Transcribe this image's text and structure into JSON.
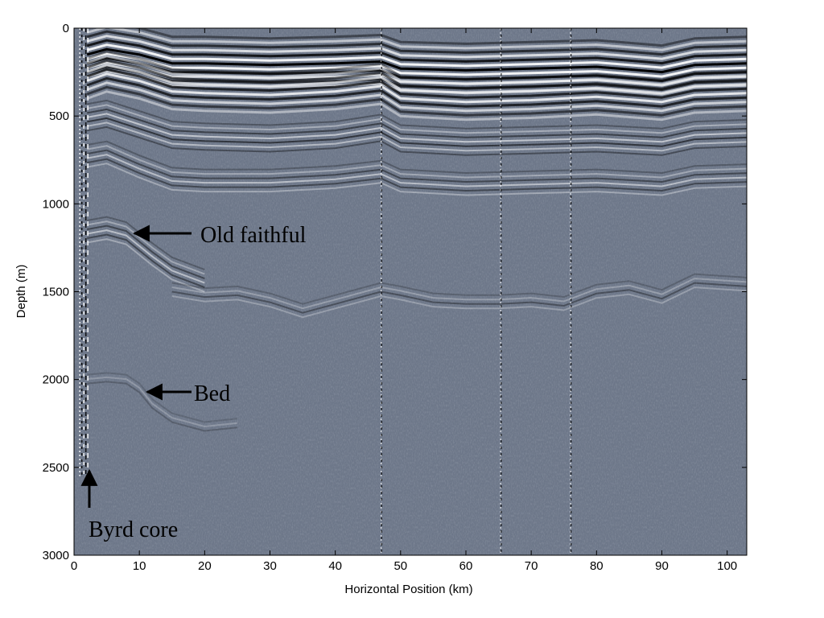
{
  "chart_data": {
    "type": "heatmap",
    "description_kind": "radargram",
    "xlabel": "Horizontal Position (km)",
    "ylabel": "Depth (m)",
    "xlim": [
      0,
      103
    ],
    "ylim": [
      0,
      3000
    ],
    "y_inverted": true,
    "grid": false,
    "colormap": [
      "#000000",
      "#6d7789",
      "#ffffff"
    ],
    "background_color": "#6d7789",
    "x_ticks": [
      0,
      10,
      20,
      30,
      40,
      50,
      60,
      70,
      80,
      90,
      100
    ],
    "y_ticks": [
      0,
      500,
      1000,
      1500,
      2000,
      2500,
      3000
    ],
    "noisy_columns_km": [
      1.5,
      47.2,
      65.5,
      76.2
    ],
    "layers": [
      {
        "x": [
          2,
          5,
          10,
          15,
          20,
          30,
          40,
          47,
          50,
          60,
          70,
          80,
          90,
          95,
          103
        ],
        "depth": [
          150,
          120,
          150,
          200,
          200,
          210,
          200,
          190,
          230,
          240,
          230,
          220,
          250,
          210,
          200
        ],
        "strength": 1.0
      },
      {
        "x": [
          2,
          5,
          10,
          15,
          20,
          30,
          40,
          47,
          50,
          60,
          70,
          80,
          90,
          95,
          103
        ],
        "depth": [
          300,
          260,
          300,
          360,
          370,
          380,
          360,
          330,
          400,
          420,
          410,
          390,
          420,
          380,
          370
        ],
        "strength": 0.8
      },
      {
        "x": [
          2,
          5,
          10,
          15,
          20,
          30,
          40,
          47,
          50,
          60,
          70,
          80,
          90,
          95,
          103
        ],
        "depth": [
          520,
          500,
          560,
          620,
          630,
          640,
          620,
          580,
          640,
          660,
          650,
          640,
          660,
          620,
          610
        ],
        "strength": 0.6
      },
      {
        "x": [
          2,
          5,
          10,
          15,
          20,
          30,
          40,
          47,
          50,
          60,
          70,
          80,
          90,
          95,
          103
        ],
        "depth": [
          740,
          720,
          800,
          870,
          880,
          880,
          860,
          830,
          880,
          900,
          890,
          880,
          900,
          860,
          850
        ],
        "strength": 0.5
      },
      {
        "x": [
          2,
          5,
          8,
          12,
          15,
          20
        ],
        "depth": [
          1170,
          1150,
          1180,
          1300,
          1380,
          1450
        ],
        "strength": 0.5
      },
      {
        "x": [
          15,
          20,
          25,
          30,
          35,
          40,
          47,
          50,
          55,
          60,
          65,
          70,
          75,
          80,
          85,
          90,
          95,
          103
        ],
        "depth": [
          1500,
          1530,
          1520,
          1560,
          1620,
          1570,
          1500,
          1520,
          1560,
          1570,
          1570,
          1560,
          1580,
          1510,
          1490,
          1540,
          1450,
          1470
        ],
        "strength": 0.35
      },
      {
        "x": [
          2,
          5,
          8,
          10,
          12,
          15,
          20,
          25
        ],
        "depth": [
          2010,
          2000,
          2010,
          2060,
          2150,
          2230,
          2280,
          2260
        ],
        "strength": 0.25
      }
    ],
    "annotations": [
      {
        "text": "Old faithful",
        "arrow_to_km": 8.5,
        "arrow_to_depth": 1170
      },
      {
        "text": "Bed",
        "arrow_to_km": 10.5,
        "arrow_to_depth": 2060
      },
      {
        "text": "Byrd core",
        "arrow_to_km": 2.2,
        "arrow_to_depth": 2500
      }
    ]
  }
}
